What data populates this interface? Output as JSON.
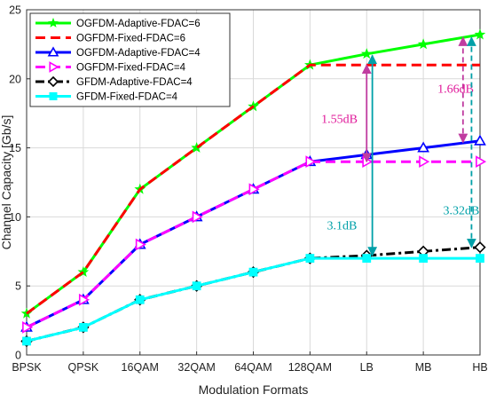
{
  "chart_data": {
    "type": "line",
    "title": "",
    "xlabel": "Modulation Formats",
    "ylabel": "Channel Capacity [Gb/s]",
    "categories": [
      "BPSK",
      "QPSK",
      "16QAM",
      "32QAM",
      "64QAM",
      "128QAM",
      "LB",
      "MB",
      "HB"
    ],
    "ylim": [
      0,
      25
    ],
    "yticks": [
      0,
      5,
      10,
      15,
      20,
      25
    ],
    "grid": true,
    "legend_position": "top-left",
    "series": [
      {
        "name": "OGFDM-Adaptive-FDAC=6",
        "values": [
          3,
          6,
          12,
          15,
          18,
          21,
          21.8,
          22.5,
          23.2
        ],
        "color": "#00ff00",
        "dash": "solid",
        "marker": "star"
      },
      {
        "name": "OGFDM-Fixed-FDAC=6",
        "values": [
          3,
          6,
          12,
          15,
          18,
          21,
          21,
          21,
          21
        ],
        "color": "#ff0000",
        "dash": "dashed",
        "marker": "none"
      },
      {
        "name": "OGFDM-Adaptive-FDAC=4",
        "values": [
          2,
          4,
          8,
          10,
          12,
          14,
          14.5,
          15,
          15.5
        ],
        "color": "#0000ff",
        "dash": "solid",
        "marker": "triangle-up"
      },
      {
        "name": "OGFDM-Fixed-FDAC=4",
        "values": [
          2,
          4,
          8,
          10,
          12,
          14,
          14,
          14,
          14
        ],
        "color": "#ff00ff",
        "dash": "dashed",
        "marker": "triangle-right"
      },
      {
        "name": "GFDM-Adaptive-FDAC=4",
        "values": [
          1,
          2,
          4,
          5,
          6,
          7,
          7.2,
          7.5,
          7.8
        ],
        "color": "#000000",
        "dash": "dashdot",
        "marker": "diamond"
      },
      {
        "name": "GFDM-Fixed-FDAC=4",
        "values": [
          1,
          2,
          4,
          5,
          6,
          7,
          7,
          7,
          7
        ],
        "color": "#00ffff",
        "dash": "solid",
        "marker": "square"
      }
    ],
    "annotations": [
      {
        "text": "1.55dB",
        "color": "#e0199a",
        "line_color": "#c03ca0",
        "x_index": 6,
        "y_from": 14,
        "y_to": 21,
        "text_x_index": 5.2,
        "text_y": 16.8
      },
      {
        "text": "1.66dB",
        "color": "#e0199a",
        "line_color": "#c03ca0",
        "x_index": 7.7,
        "y_from": 15.4,
        "y_to": 23,
        "text_x_index": 7.25,
        "text_y": 19
      },
      {
        "text": "3.1dB",
        "color": "#00a0a8",
        "line_color": "#00a0a8",
        "x_index": 6.1,
        "y_from": 7.2,
        "y_to": 21.7,
        "text_x_index": 5.3,
        "text_y": 9.1
      },
      {
        "text": "3.32dB",
        "color": "#00a0a8",
        "line_color": "#00a0a8",
        "x_index": 7.85,
        "y_from": 7.8,
        "y_to": 23,
        "text_x_index": 7.35,
        "text_y": 10.2
      }
    ]
  }
}
